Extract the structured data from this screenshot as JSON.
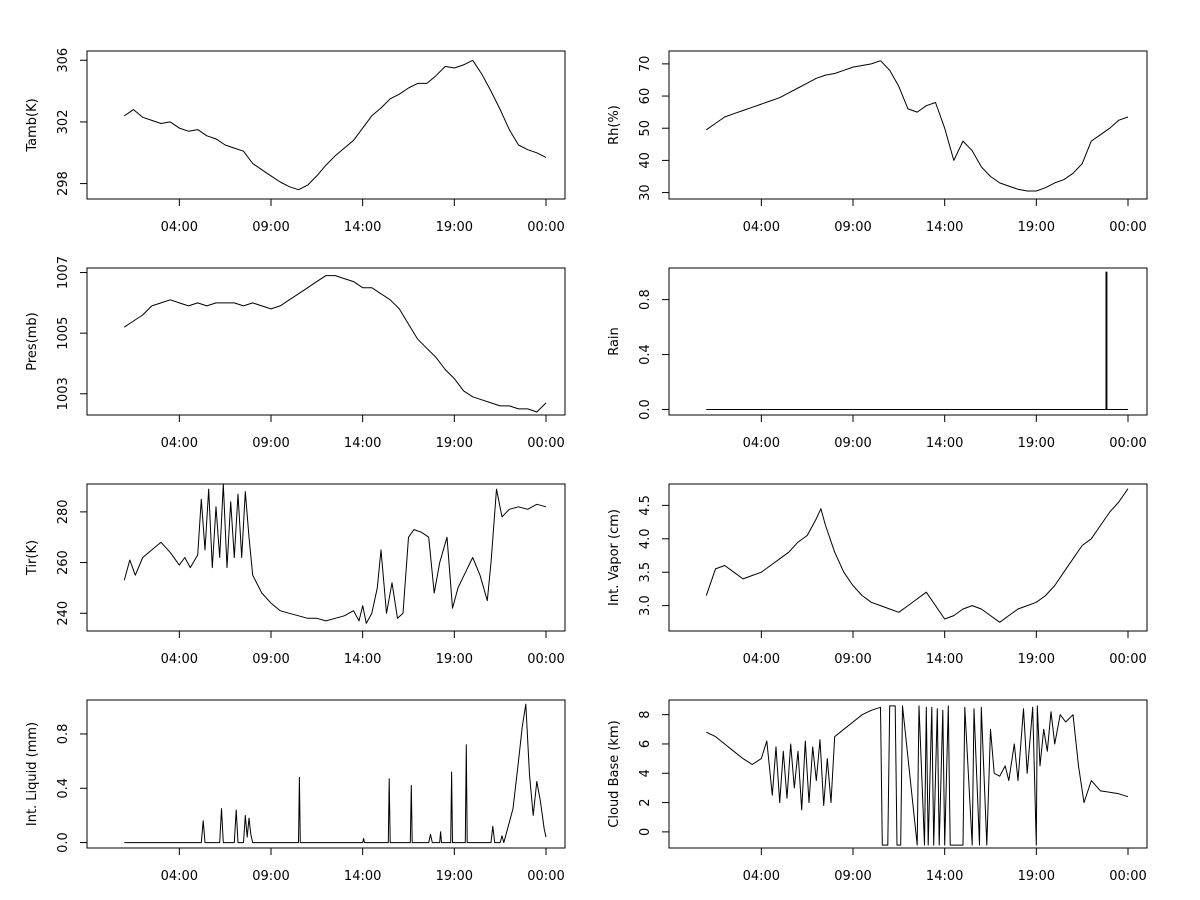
{
  "chart_data": [
    {
      "type": "line",
      "ylabel": "Tamb(K)",
      "xlabel": "",
      "x_ticks": [
        "04:00",
        "09:00",
        "14:00",
        "19:00",
        "00:00"
      ],
      "xlim": [
        0,
        24
      ],
      "ylim": [
        297,
        306.6
      ],
      "y_ticks": [
        298,
        302,
        306
      ],
      "series": [
        {
          "name": "Tamb(K)",
          "x": [
            1,
            1.5,
            2,
            2.5,
            3,
            3.5,
            4,
            4.5,
            5,
            5.5,
            6,
            6.5,
            7,
            7.5,
            8,
            8.5,
            9,
            9.5,
            10,
            10.5,
            11,
            11.5,
            12,
            12.5,
            13,
            13.5,
            14,
            14.5,
            15,
            15.5,
            16,
            16.5,
            17,
            17.5,
            18,
            18.5,
            19,
            19.5,
            20,
            20.5,
            21,
            21.5,
            22,
            22.5,
            23,
            23.5,
            24
          ],
          "values": [
            302.4,
            302.8,
            302.3,
            302.1,
            301.9,
            302.0,
            301.6,
            301.4,
            301.5,
            301.1,
            300.9,
            300.5,
            300.3,
            300.1,
            299.3,
            298.9,
            298.5,
            298.1,
            297.8,
            297.6,
            297.9,
            298.5,
            299.2,
            299.8,
            300.3,
            300.8,
            301.6,
            302.4,
            302.9,
            303.5,
            303.8,
            304.2,
            304.5,
            304.5,
            305.0,
            305.6,
            305.5,
            305.7,
            306.0,
            305.1,
            304.0,
            302.8,
            301.5,
            300.5,
            300.2,
            300.0,
            299.7
          ]
        }
      ]
    },
    {
      "type": "line",
      "ylabel": "Rh(%)",
      "xlabel": "",
      "x_ticks": [
        "04:00",
        "09:00",
        "14:00",
        "19:00",
        "00:00"
      ],
      "xlim": [
        0,
        24
      ],
      "ylim": [
        28,
        74
      ],
      "y_ticks": [
        30,
        40,
        50,
        60,
        70
      ],
      "series": [
        {
          "name": "Rh(%)",
          "x": [
            1,
            1.5,
            2,
            2.5,
            3,
            3.5,
            4,
            4.5,
            5,
            5.5,
            6,
            6.5,
            7,
            7.5,
            8,
            8.5,
            9,
            9.5,
            10,
            10.5,
            11,
            11.5,
            12,
            12.5,
            13,
            13.5,
            14,
            14.5,
            15,
            15.5,
            16,
            16.5,
            17,
            17.5,
            18,
            18.5,
            19,
            19.5,
            20,
            20.5,
            21,
            21.5,
            22,
            22.5,
            23,
            23.5,
            24
          ],
          "values": [
            49.5,
            51.5,
            53.5,
            54.5,
            55.5,
            56.5,
            57.5,
            58.5,
            59.5,
            61.0,
            62.5,
            64.0,
            65.5,
            66.5,
            67.0,
            68.0,
            69.0,
            69.5,
            70.0,
            71.0,
            68.0,
            63.0,
            56.0,
            55.0,
            57.0,
            58.0,
            50.0,
            40.0,
            46.0,
            43.0,
            38.0,
            35.0,
            33.0,
            32.0,
            31.0,
            30.5,
            30.5,
            31.5,
            33.0,
            34.0,
            36.0,
            39.0,
            46.0,
            48.0,
            50.0,
            52.5,
            53.5
          ]
        }
      ]
    },
    {
      "type": "line",
      "ylabel": "Pres(mb)",
      "xlabel": "",
      "x_ticks": [
        "04:00",
        "09:00",
        "14:00",
        "19:00",
        "00:00"
      ],
      "xlim": [
        0,
        24
      ],
      "ylim": [
        1002.3,
        1007.15
      ],
      "y_ticks": [
        1003,
        1005,
        1007
      ],
      "series": [
        {
          "name": "Pres(mb)",
          "x": [
            1,
            1.5,
            2,
            2.5,
            3,
            3.5,
            4,
            4.5,
            5,
            5.5,
            6,
            6.5,
            7,
            7.5,
            8,
            8.5,
            9,
            9.5,
            10,
            10.5,
            11,
            11.5,
            12,
            12.5,
            13,
            13.5,
            14,
            14.5,
            15,
            15.5,
            16,
            16.5,
            17,
            17.5,
            18,
            18.5,
            19,
            19.5,
            20,
            20.5,
            21,
            21.5,
            22,
            22.5,
            23,
            23.5,
            24
          ],
          "values": [
            1005.2,
            1005.4,
            1005.6,
            1005.9,
            1006.0,
            1006.1,
            1006.0,
            1005.9,
            1006.0,
            1005.9,
            1006.0,
            1006.0,
            1006.0,
            1005.9,
            1006.0,
            1005.9,
            1005.8,
            1005.9,
            1006.1,
            1006.3,
            1006.5,
            1006.7,
            1006.9,
            1006.9,
            1006.8,
            1006.7,
            1006.5,
            1006.5,
            1006.3,
            1006.1,
            1005.8,
            1005.3,
            1004.8,
            1004.5,
            1004.2,
            1003.8,
            1003.5,
            1003.1,
            1002.9,
            1002.8,
            1002.7,
            1002.6,
            1002.6,
            1002.5,
            1002.5,
            1002.4,
            1002.7
          ]
        }
      ]
    },
    {
      "type": "line",
      "ylabel": "Rain",
      "xlabel": "",
      "x_ticks": [
        "04:00",
        "09:00",
        "14:00",
        "19:00",
        "00:00"
      ],
      "xlim": [
        0,
        24
      ],
      "ylim": [
        -0.04,
        1.03
      ],
      "y_ticks": [
        0.0,
        0.4,
        0.8
      ],
      "y_tick_labels": [
        "0.0",
        "0.4",
        "0.8"
      ],
      "series": [
        {
          "name": "Rain",
          "x": [
            1,
            22.8,
            22.8,
            22.85,
            22.85,
            24
          ],
          "values": [
            0,
            0,
            1.0,
            1.0,
            0,
            0
          ]
        }
      ]
    },
    {
      "type": "line",
      "ylabel": "Tir(K)",
      "xlabel": "",
      "x_ticks": [
        "04:00",
        "09:00",
        "14:00",
        "19:00",
        "00:00"
      ],
      "xlim": [
        0,
        24
      ],
      "ylim": [
        233,
        291
      ],
      "y_ticks": [
        240,
        260,
        280
      ],
      "series": [
        {
          "name": "Tir(K)",
          "x": [
            1,
            1.3,
            1.6,
            2,
            2.5,
            3,
            3.5,
            4,
            4.3,
            4.6,
            5,
            5.2,
            5.4,
            5.6,
            5.8,
            6,
            6.2,
            6.4,
            6.6,
            6.8,
            7,
            7.2,
            7.4,
            7.6,
            7.8,
            8,
            8.5,
            9,
            9.5,
            10,
            10.5,
            11,
            11.5,
            12,
            12.5,
            13,
            13.5,
            13.8,
            14,
            14.2,
            14.5,
            14.8,
            15,
            15.3,
            15.6,
            15.9,
            16.2,
            16.5,
            16.8,
            17.2,
            17.6,
            17.9,
            18.2,
            18.6,
            18.9,
            19.2,
            19.6,
            20,
            20.4,
            20.8,
            21,
            21.3,
            21.6,
            22,
            22.5,
            23,
            23.5,
            24
          ],
          "values": [
            253,
            261,
            255,
            262,
            265,
            268,
            264,
            259,
            262,
            258,
            263,
            285,
            265,
            289,
            258,
            282,
            262,
            291,
            258,
            284,
            262,
            287,
            262,
            288,
            270,
            255,
            248,
            244,
            241,
            240,
            239,
            238,
            238,
            237,
            238,
            239,
            241,
            237,
            243,
            236,
            240,
            250,
            265,
            240,
            252,
            238,
            240,
            270,
            273,
            272,
            270,
            248,
            260,
            270,
            242,
            250,
            256,
            262,
            255,
            245,
            260,
            289,
            278,
            281,
            282,
            281,
            283,
            282
          ]
        }
      ]
    },
    {
      "type": "line",
      "ylabel": "Int. Vapor (cm)",
      "xlabel": "",
      "x_ticks": [
        "04:00",
        "09:00",
        "14:00",
        "19:00",
        "00:00"
      ],
      "xlim": [
        0,
        24
      ],
      "ylim": [
        2.62,
        4.82
      ],
      "y_ticks": [
        3.0,
        3.5,
        4.0,
        4.5
      ],
      "y_tick_labels": [
        "3.0",
        "3.5",
        "4.0",
        "4.5"
      ],
      "series": [
        {
          "name": "Int. Vapor (cm)",
          "x": [
            1,
            1.5,
            2,
            2.5,
            3,
            3.5,
            4,
            4.5,
            5,
            5.5,
            6,
            6.5,
            7,
            7.25,
            7.5,
            8,
            8.5,
            9,
            9.5,
            10,
            10.5,
            11,
            11.5,
            12,
            12.5,
            13,
            13.5,
            14,
            14.5,
            15,
            15.5,
            16,
            16.5,
            17,
            17.5,
            18,
            18.5,
            19,
            19.5,
            20,
            20.5,
            21,
            21.5,
            22,
            22.5,
            23,
            23.5,
            24
          ],
          "values": [
            3.15,
            3.55,
            3.6,
            3.5,
            3.4,
            3.45,
            3.5,
            3.6,
            3.7,
            3.8,
            3.95,
            4.05,
            4.3,
            4.45,
            4.2,
            3.8,
            3.5,
            3.3,
            3.15,
            3.05,
            3.0,
            2.95,
            2.9,
            3.0,
            3.1,
            3.2,
            3.0,
            2.8,
            2.85,
            2.95,
            3.0,
            2.95,
            2.85,
            2.75,
            2.85,
            2.95,
            3.0,
            3.05,
            3.15,
            3.3,
            3.5,
            3.7,
            3.9,
            4.0,
            4.2,
            4.4,
            4.55,
            4.75
          ]
        }
      ]
    },
    {
      "type": "line",
      "ylabel": "Int. Liquid (mm)",
      "xlabel": "",
      "x_ticks": [
        "04:00",
        "09:00",
        "14:00",
        "19:00",
        "00:00"
      ],
      "xlim": [
        0,
        24
      ],
      "ylim": [
        -0.04,
        1.05
      ],
      "y_ticks": [
        0.0,
        0.4,
        0.8
      ],
      "y_tick_labels": [
        "0.0",
        "0.4",
        "0.8"
      ],
      "series": [
        {
          "name": "Int. Liquid (mm)",
          "x": [
            1,
            5.2,
            5.3,
            5.4,
            6.2,
            6.3,
            6.4,
            7,
            7.1,
            7.2,
            7.5,
            7.6,
            7.7,
            7.8,
            7.9,
            8.0,
            10.5,
            10.55,
            10.6,
            14,
            14.05,
            14.1,
            15.4,
            15.45,
            15.5,
            16.6,
            16.65,
            16.7,
            17.6,
            17.7,
            17.8,
            18.2,
            18.25,
            18.3,
            18.8,
            18.85,
            18.9,
            19.6,
            19.65,
            19.7,
            21.0,
            21.1,
            21.2,
            21.5,
            21.6,
            21.7,
            21.9,
            22.2,
            22.5,
            22.7,
            22.9,
            23.1,
            23.3,
            23.5,
            23.7,
            23.9,
            24
          ],
          "values": [
            0,
            0,
            0.16,
            0,
            0,
            0.25,
            0,
            0,
            0.24,
            0,
            0,
            0.2,
            0.04,
            0.18,
            0.06,
            0,
            0,
            0.48,
            0,
            0,
            0.03,
            0,
            0,
            0.47,
            0,
            0,
            0.42,
            0,
            0,
            0.06,
            0,
            0,
            0.08,
            0,
            0,
            0.52,
            0,
            0,
            0.72,
            0,
            0,
            0.12,
            0,
            0,
            0.05,
            0,
            0.1,
            0.25,
            0.6,
            0.85,
            1.02,
            0.5,
            0.2,
            0.45,
            0.3,
            0.1,
            0.04
          ]
        }
      ]
    },
    {
      "type": "line",
      "ylabel": "Cloud Base (km)",
      "xlabel": "",
      "x_ticks": [
        "04:00",
        "09:00",
        "14:00",
        "19:00",
        "00:00"
      ],
      "xlim": [
        0,
        24
      ],
      "ylim": [
        -1.1,
        9.0
      ],
      "y_ticks": [
        0,
        2,
        4,
        6,
        8
      ],
      "series": [
        {
          "name": "Cloud Base (km)",
          "x": [
            1,
            1.5,
            2,
            2.5,
            3,
            3.5,
            4,
            4.3,
            4.6,
            4.8,
            5.0,
            5.2,
            5.4,
            5.6,
            5.8,
            6.0,
            6.2,
            6.4,
            6.6,
            6.8,
            7.0,
            7.2,
            7.4,
            7.6,
            7.8,
            8.0,
            8.5,
            9,
            9.5,
            10,
            10.5,
            10.6,
            10.9,
            11.0,
            11.3,
            11.4,
            11.6,
            11.7,
            12.5,
            12.6,
            12.9,
            13.0,
            13.1,
            13.3,
            13.4,
            13.6,
            13.7,
            13.9,
            14.0,
            14.2,
            14.3,
            15.0,
            15.1,
            15.5,
            15.6,
            15.9,
            16.0,
            16.3,
            16.5,
            16.7,
            17.0,
            17.3,
            17.5,
            17.8,
            18.0,
            18.3,
            18.5,
            18.8,
            19.0,
            19.05,
            19.2,
            19.4,
            19.6,
            19.8,
            20.0,
            20.3,
            20.6,
            21.0,
            21.3,
            21.6,
            22.0,
            22.5,
            23,
            23.5,
            24
          ],
          "values": [
            6.8,
            6.5,
            6.0,
            5.5,
            5.0,
            4.6,
            5.0,
            6.2,
            2.5,
            5.8,
            2.0,
            5.5,
            2.3,
            6.0,
            3.0,
            5.5,
            1.5,
            6.2,
            2.0,
            5.8,
            3.5,
            6.3,
            1.8,
            5.0,
            2.0,
            6.5,
            7.0,
            7.5,
            8.0,
            8.3,
            8.5,
            -0.9,
            -0.9,
            8.6,
            8.6,
            -0.9,
            -0.9,
            8.6,
            -0.9,
            8.6,
            -0.9,
            8.5,
            -0.9,
            8.5,
            -0.9,
            8.4,
            -0.9,
            8.3,
            -0.9,
            8.6,
            -0.9,
            -0.9,
            8.5,
            -0.9,
            8.4,
            -0.9,
            8.5,
            -0.9,
            7.0,
            4.0,
            3.8,
            4.5,
            3.5,
            6.0,
            3.5,
            8.4,
            4.0,
            8.5,
            -0.9,
            8.6,
            4.5,
            7.0,
            5.5,
            8.2,
            6.0,
            8.0,
            7.5,
            8.0,
            4.5,
            2.0,
            3.5,
            2.8,
            2.7,
            2.6,
            2.4
          ]
        }
      ]
    }
  ]
}
